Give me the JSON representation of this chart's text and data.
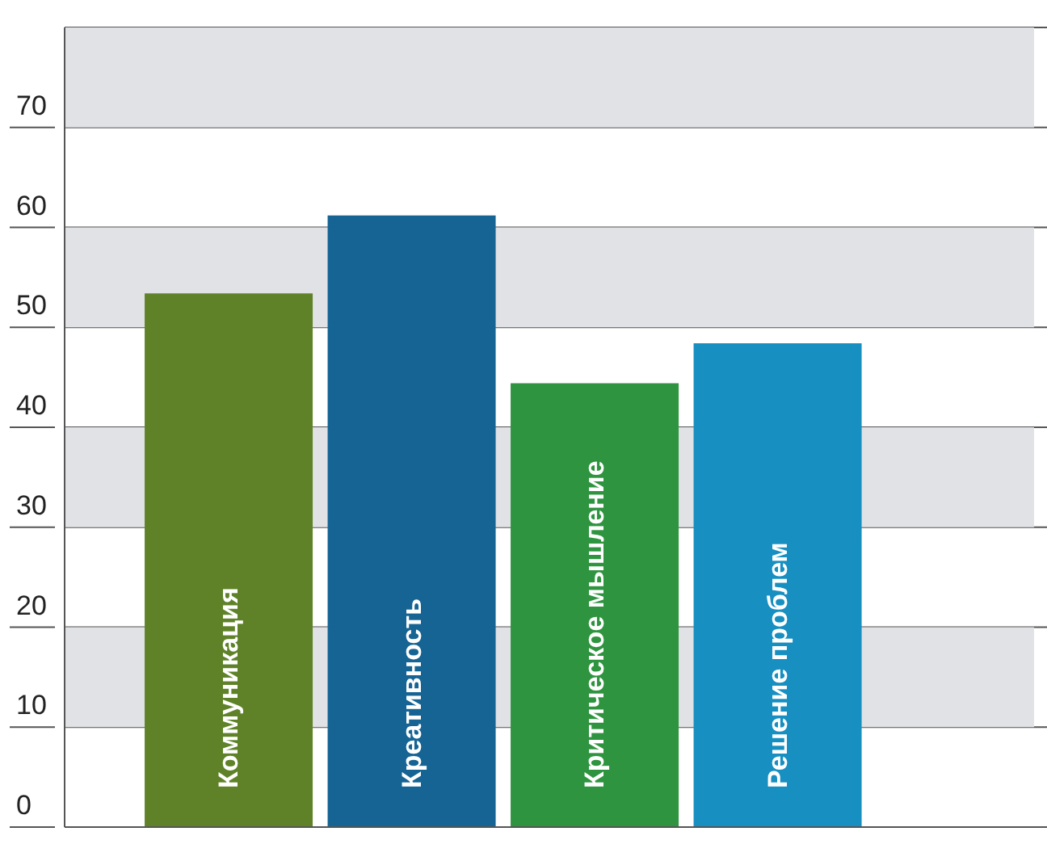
{
  "chart_data": {
    "type": "bar",
    "categories": [
      "Коммуникация",
      "Креативность",
      "Критическое мышление",
      "Решение проблем"
    ],
    "values": [
      53.4,
      61.2,
      44.4,
      48.4
    ],
    "colors": [
      "#5f8229",
      "#156494",
      "#2e943f",
      "#178fc1"
    ],
    "ylim": [
      0,
      80
    ],
    "yticks": [
      0,
      10,
      20,
      30,
      40,
      50,
      60,
      70
    ],
    "grid": "y",
    "bands": [
      {
        "axis": "y",
        "from": 10,
        "to": 20,
        "color": "#e0e2e5"
      },
      {
        "axis": "y",
        "from": 30,
        "to": 40,
        "color": "#e0e2e5"
      },
      {
        "axis": "y",
        "from": 50,
        "to": 60,
        "color": "#e0e2e5"
      },
      {
        "axis": "y",
        "from": 70,
        "to": 80,
        "color": "#e0e2e5"
      }
    ]
  }
}
